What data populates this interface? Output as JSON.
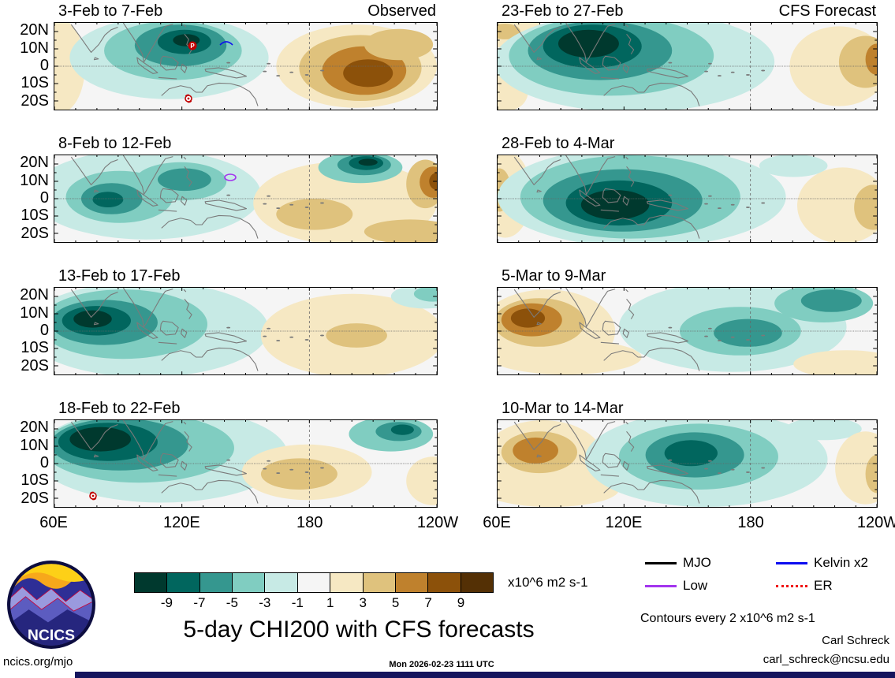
{
  "figure": {
    "main_title": "5-day CHI200 with CFS forecasts",
    "left_header": "Observed",
    "right_header": "CFS Forecast",
    "unit_label": "x10^6 m2 s-1",
    "contours_note": "Contours every 2 x10^6 m2 s-1",
    "credit_name": "Carl Schreck",
    "credit_email": "carl_schreck@ncsu.edu",
    "website": "ncics.org/mjo",
    "timestamp": "Mon 2026-02-23 1111 UTC",
    "logo_text": "NCICS"
  },
  "legend": {
    "items": [
      {
        "label": "MJO",
        "color": "#000000",
        "style": "solid"
      },
      {
        "label": "Kelvin x2",
        "color": "#0c0cf0",
        "style": "solid"
      },
      {
        "label": "Low",
        "color": "#a335ee",
        "style": "solid"
      },
      {
        "label": "ER",
        "color": "#f01414",
        "style": "dotted"
      }
    ]
  },
  "colorbar": {
    "ticks": [
      "-9",
      "-7",
      "-5",
      "-3",
      "-1",
      "1",
      "3",
      "5",
      "7",
      "9"
    ],
    "unit": "x10^6 m2 s-1",
    "colors": [
      "#00392e",
      "#01665e",
      "#35978f",
      "#80cdc1",
      "#c7eae5",
      "#f5f5f5",
      "#f6e8c3",
      "#dfc27d",
      "#bf812d",
      "#8c510a",
      "#543005"
    ]
  },
  "axes": {
    "y_tick_labels": [
      "20N",
      "10N",
      "0",
      "10S",
      "20S"
    ],
    "y_tick_pos": [
      10,
      30,
      50,
      70,
      90
    ],
    "x_tick_labels": [
      "60E",
      "120E",
      "180",
      "120W"
    ],
    "x_tick_pos": [
      0,
      33.33,
      66.67,
      100
    ]
  },
  "chart_data": {
    "type": "heatmap",
    "subtype": "filled-contour longitude-latitude anomaly maps, 2 columns x 4 rows",
    "title": "5-day CHI200 with CFS forecasts",
    "variable": "200-hPa velocity potential (CHI200) anomalies; negative (teal) = enhanced convection, positive (brown) = suppressed",
    "units": "x10^6 m2 s-1",
    "contour_interval": 2,
    "lon_range": [
      "60E",
      "120W"
    ],
    "lat_range": [
      "25S",
      "25N"
    ],
    "levels": [
      -9,
      -7,
      -5,
      -3,
      -1,
      1,
      3,
      5,
      7,
      9
    ],
    "palette": [
      "#00392e",
      "#01665e",
      "#35978f",
      "#80cdc1",
      "#c7eae5",
      "#f5f5f5",
      "#f6e8c3",
      "#dfc27d",
      "#bf812d",
      "#8c510a",
      "#543005"
    ],
    "columns": [
      "Observed",
      "CFS Forecast"
    ],
    "panels": [
      {
        "title": "3-Feb to 7-Feb",
        "corner": "Observed",
        "col": 0,
        "row": 0,
        "blobs": [
          [
            1,
            50,
            7,
            55,
            6
          ],
          [
            30,
            40,
            26,
            48,
            4
          ],
          [
            31,
            32,
            18,
            34,
            3
          ],
          [
            33,
            26,
            12,
            24,
            2
          ],
          [
            34,
            22,
            7,
            14,
            1
          ],
          [
            34.5,
            20,
            3.5,
            7,
            0
          ],
          [
            79,
            50,
            21,
            48,
            6
          ],
          [
            80,
            52,
            16,
            38,
            7
          ],
          [
            81,
            55,
            11,
            28,
            8
          ],
          [
            82,
            58,
            6.5,
            16,
            9
          ],
          [
            90,
            25,
            9,
            18,
            7
          ]
        ],
        "markers": [
          {
            "kind": "cyclone",
            "x": 36,
            "y": 26,
            "label": "P"
          },
          {
            "kind": "cyclone",
            "x": 35,
            "y": 87
          },
          {
            "kind": "kelvin",
            "x": 45,
            "y": 23
          }
        ]
      },
      {
        "title": "8-Feb to 12-Feb",
        "col": 0,
        "row": 1,
        "blobs": [
          [
            24,
            45,
            30,
            52,
            4
          ],
          [
            17,
            48,
            14,
            30,
            3
          ],
          [
            15,
            50,
            8,
            18,
            2
          ],
          [
            14,
            51,
            4,
            9,
            1
          ],
          [
            33,
            30,
            12,
            22,
            3
          ],
          [
            34,
            28,
            7,
            13,
            2
          ],
          [
            76,
            55,
            24,
            48,
            6
          ],
          [
            68,
            68,
            10,
            18,
            7
          ],
          [
            93,
            88,
            12,
            14,
            7
          ],
          [
            80,
            14,
            11,
            18,
            3
          ],
          [
            81,
            11,
            7,
            12,
            2
          ],
          [
            81.5,
            9,
            4.5,
            8,
            1
          ],
          [
            82,
            8,
            2.5,
            4,
            0
          ],
          [
            97,
            33,
            5,
            28,
            7
          ],
          [
            99,
            31,
            3.5,
            18,
            8
          ],
          [
            100,
            30,
            2,
            10,
            9
          ]
        ],
        "markers": [
          {
            "kind": "low",
            "x": 46,
            "y": 25
          }
        ]
      },
      {
        "title": "13-Feb to 17-Feb",
        "col": 0,
        "row": 2,
        "blobs": [
          [
            24,
            48,
            32,
            55,
            4
          ],
          [
            18,
            42,
            22,
            40,
            3
          ],
          [
            13,
            40,
            14,
            26,
            2
          ],
          [
            11,
            38,
            9,
            17,
            1
          ],
          [
            10,
            36,
            5,
            10,
            0
          ],
          [
            78,
            55,
            24,
            48,
            6
          ],
          [
            79,
            55,
            8,
            14,
            7
          ],
          [
            97,
            10,
            9,
            14,
            4
          ],
          [
            99,
            7,
            5,
            9,
            3
          ]
        ],
        "markers": []
      },
      {
        "title": "18-Feb to 22-Feb",
        "col": 0,
        "row": 3,
        "blobs": [
          [
            28,
            40,
            33,
            55,
            4
          ],
          [
            22,
            32,
            25,
            40,
            3
          ],
          [
            17,
            28,
            18,
            30,
            2
          ],
          [
            14,
            25,
            13,
            22,
            1
          ],
          [
            12,
            22,
            8,
            14,
            0
          ],
          [
            66,
            60,
            17,
            32,
            6
          ],
          [
            64,
            62,
            10,
            18,
            7
          ],
          [
            88,
            16,
            11,
            20,
            3
          ],
          [
            90,
            13,
            6,
            11,
            2
          ],
          [
            91,
            11,
            3,
            6,
            1
          ],
          [
            99,
            70,
            7,
            28,
            6
          ]
        ],
        "markers": [
          {
            "kind": "cyclone",
            "x": 10,
            "y": 87
          }
        ]
      },
      {
        "title": "23-Feb to 27-Feb",
        "corner": "CFS Forecast",
        "col": 1,
        "row": 0,
        "blobs": [
          [
            4,
            12,
            9,
            18,
            6
          ],
          [
            2,
            10,
            4,
            9,
            7
          ],
          [
            2,
            80,
            6,
            22,
            6
          ],
          [
            36,
            45,
            37,
            58,
            4
          ],
          [
            30,
            38,
            27,
            46,
            3
          ],
          [
            27,
            32,
            19,
            34,
            2
          ],
          [
            25,
            27,
            13,
            25,
            1
          ],
          [
            24,
            24,
            8,
            16,
            0
          ],
          [
            90,
            50,
            13,
            46,
            6
          ],
          [
            97,
            45,
            7,
            30,
            7
          ],
          [
            100,
            42,
            3,
            18,
            8
          ]
        ],
        "markers": []
      },
      {
        "title": "28-Feb to 4-Mar",
        "col": 1,
        "row": 1,
        "blobs": [
          [
            2,
            45,
            7,
            50,
            6
          ],
          [
            0.5,
            40,
            3,
            25,
            7
          ],
          [
            38,
            48,
            38,
            58,
            4
          ],
          [
            35,
            48,
            29,
            48,
            3
          ],
          [
            33,
            52,
            21,
            36,
            2
          ],
          [
            32,
            55,
            14,
            26,
            1
          ],
          [
            31,
            57,
            9,
            17,
            0
          ],
          [
            78,
            12,
            9,
            13,
            4
          ],
          [
            91,
            58,
            12,
            44,
            6
          ],
          [
            99,
            60,
            5,
            26,
            7
          ]
        ],
        "markers": []
      },
      {
        "title": "5-Mar to 9-Mar",
        "col": 1,
        "row": 2,
        "blobs": [
          [
            13,
            50,
            18,
            48,
            6
          ],
          [
            18,
            80,
            20,
            20,
            6
          ],
          [
            11,
            40,
            12,
            28,
            7
          ],
          [
            9,
            37,
            8,
            19,
            8
          ],
          [
            8,
            35,
            4.5,
            11,
            9
          ],
          [
            62,
            45,
            30,
            52,
            4
          ],
          [
            64,
            50,
            16,
            28,
            3
          ],
          [
            66,
            52,
            9,
            16,
            2
          ],
          [
            86,
            18,
            13,
            22,
            3
          ],
          [
            88,
            15,
            8,
            13,
            2
          ],
          [
            92,
            88,
            14,
            16,
            6
          ]
        ],
        "markers": []
      },
      {
        "title": "10-Mar to 14-Mar",
        "col": 1,
        "row": 3,
        "blobs": [
          [
            12,
            45,
            16,
            45,
            6
          ],
          [
            14,
            80,
            18,
            20,
            6
          ],
          [
            11,
            37,
            10,
            24,
            7
          ],
          [
            10,
            35,
            6,
            15,
            8
          ],
          [
            55,
            45,
            32,
            55,
            4
          ],
          [
            53,
            42,
            21,
            38,
            3
          ],
          [
            52,
            40,
            13,
            26,
            2
          ],
          [
            51,
            38,
            7,
            15,
            1
          ],
          [
            86,
            10,
            10,
            13,
            4
          ],
          [
            97,
            55,
            8,
            42,
            6
          ],
          [
            100,
            62,
            3,
            22,
            7
          ]
        ],
        "markers": []
      }
    ]
  }
}
